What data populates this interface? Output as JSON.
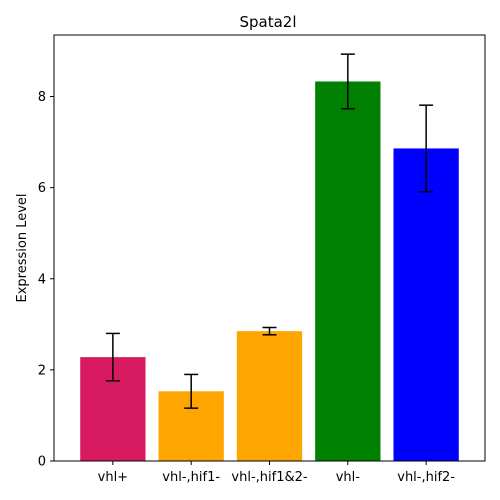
{
  "chart_data": {
    "type": "bar",
    "title": "Spata2l",
    "xlabel": "",
    "ylabel": "Expression Level",
    "ylim": [
      0,
      9.35
    ],
    "yticks": [
      0,
      2,
      4,
      6,
      8
    ],
    "grid": false,
    "legend": "none",
    "categories": [
      "vhl+",
      "vhl-,hif1-",
      "vhl-,hif1&2-",
      "vhl-",
      "vhl-,hif2-"
    ],
    "values": [
      2.28,
      1.53,
      2.85,
      8.33,
      6.86
    ],
    "errors": [
      0.52,
      0.37,
      0.08,
      0.6,
      0.95
    ],
    "colors": [
      "#d81b60",
      "#ffa500",
      "#ffa500",
      "#008000",
      "#0000ff"
    ]
  }
}
